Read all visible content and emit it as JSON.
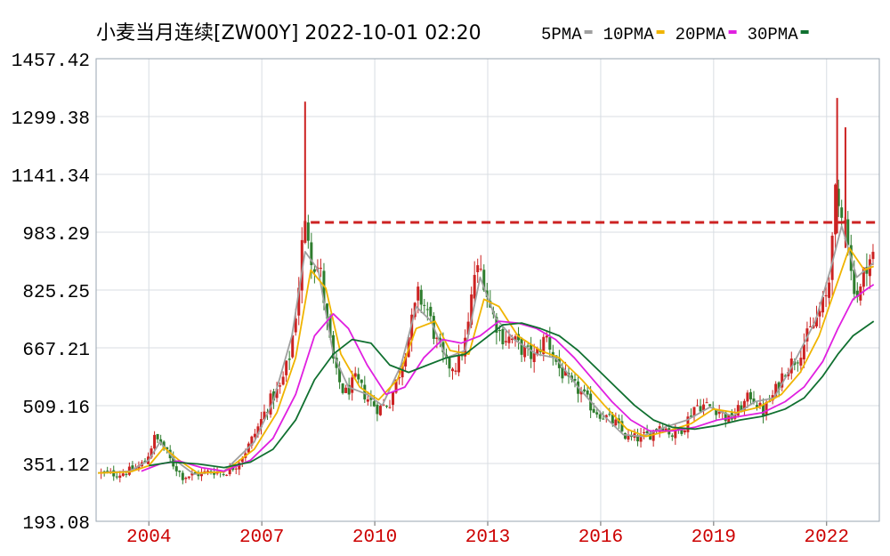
{
  "header": {
    "title": "小麦当月连续[ZW00Y] 2022-10-01 02:20"
  },
  "legend": {
    "placement": "top-right",
    "items": [
      {
        "label": "5PMA",
        "color": "#a0a0a0"
      },
      {
        "label": "10PMA",
        "color": "#f0b400"
      },
      {
        "label": "20PMA",
        "color": "#e020e0"
      },
      {
        "label": "30PMA",
        "color": "#107030"
      }
    ]
  },
  "colors": {
    "up": "#cc2222",
    "down": "#2e7d2e",
    "grid": "#d8dde3",
    "axis_text": "#000000",
    "xaxis_text": "#cc0000",
    "reference_line": "#cc2222"
  },
  "chart_data": {
    "type": "candlestick",
    "yticks": [
      "1457.42",
      "1299.38",
      "1141.34",
      "983.29",
      "825.25",
      "667.21",
      "509.16",
      "351.12",
      "193.08"
    ],
    "ylim": [
      193.08,
      1457.42
    ],
    "xlim": [
      2002.6,
      2023.4
    ],
    "xticks": [
      "2004",
      "2007",
      "2010",
      "2013",
      "2016",
      "2019",
      "2022"
    ],
    "grid": true,
    "reference_line": {
      "value": 1010,
      "style": "dashed",
      "from_x": 2008.3,
      "to_x": 2023.3
    },
    "close_path": [
      [
        2002.65,
        325
      ],
      [
        2003.2,
        322
      ],
      [
        2003.6,
        335
      ],
      [
        2003.9,
        355
      ],
      [
        2004.15,
        420
      ],
      [
        2004.35,
        405
      ],
      [
        2004.6,
        355
      ],
      [
        2004.9,
        315
      ],
      [
        2005.3,
        322
      ],
      [
        2005.7,
        330
      ],
      [
        2006.0,
        325
      ],
      [
        2006.3,
        345
      ],
      [
        2006.6,
        390
      ],
      [
        2006.9,
        450
      ],
      [
        2007.2,
        520
      ],
      [
        2007.5,
        560
      ],
      [
        2007.75,
        650
      ],
      [
        2007.95,
        800
      ],
      [
        2008.1,
        990
      ],
      [
        2008.2,
        1000
      ],
      [
        2008.35,
        900
      ],
      [
        2008.55,
        880
      ],
      [
        2008.75,
        720
      ],
      [
        2008.95,
        600
      ],
      [
        2009.2,
        540
      ],
      [
        2009.5,
        580
      ],
      [
        2009.8,
        530
      ],
      [
        2010.1,
        500
      ],
      [
        2010.4,
        520
      ],
      [
        2010.65,
        600
      ],
      [
        2010.9,
        700
      ],
      [
        2011.15,
        810
      ],
      [
        2011.4,
        770
      ],
      [
        2011.65,
        680
      ],
      [
        2011.9,
        620
      ],
      [
        2012.2,
        620
      ],
      [
        2012.45,
        700
      ],
      [
        2012.65,
        870
      ],
      [
        2012.85,
        880
      ],
      [
        2013.05,
        780
      ],
      [
        2013.35,
        700
      ],
      [
        2013.65,
        690
      ],
      [
        2013.95,
        660
      ],
      [
        2014.25,
        640
      ],
      [
        2014.55,
        700
      ],
      [
        2014.85,
        620
      ],
      [
        2015.15,
        570
      ],
      [
        2015.45,
        550
      ],
      [
        2015.8,
        500
      ],
      [
        2016.1,
        480
      ],
      [
        2016.4,
        460
      ],
      [
        2016.7,
        420
      ],
      [
        2017.0,
        420
      ],
      [
        2017.3,
        430
      ],
      [
        2017.6,
        460
      ],
      [
        2017.9,
        430
      ],
      [
        2018.2,
        450
      ],
      [
        2018.5,
        510
      ],
      [
        2018.8,
        510
      ],
      [
        2019.1,
        500
      ],
      [
        2019.4,
        470
      ],
      [
        2019.7,
        500
      ],
      [
        2020.0,
        540
      ],
      [
        2020.3,
        490
      ],
      [
        2020.6,
        540
      ],
      [
        2020.9,
        610
      ],
      [
        2021.2,
        640
      ],
      [
        2021.5,
        700
      ],
      [
        2021.8,
        760
      ],
      [
        2022.05,
        820
      ],
      [
        2022.2,
        1100
      ],
      [
        2022.35,
        1000
      ],
      [
        2022.5,
        1050
      ],
      [
        2022.65,
        870
      ],
      [
        2022.85,
        800
      ],
      [
        2023.05,
        900
      ],
      [
        2023.25,
        920
      ]
    ],
    "spikes": [
      {
        "x": 2008.15,
        "high": 1340,
        "low": 960
      },
      {
        "x": 2022.28,
        "high": 1350,
        "low": 980
      },
      {
        "x": 2022.5,
        "high": 1270,
        "low": 940
      }
    ],
    "series": [
      {
        "name": "5PMA",
        "points": [
          [
            2002.65,
            325
          ],
          [
            2003.5,
            330
          ],
          [
            2004.0,
            360
          ],
          [
            2004.3,
            410
          ],
          [
            2004.7,
            360
          ],
          [
            2005.2,
            322
          ],
          [
            2006.0,
            330
          ],
          [
            2006.8,
            410
          ],
          [
            2007.3,
            520
          ],
          [
            2007.8,
            700
          ],
          [
            2008.15,
            930
          ],
          [
            2008.5,
            880
          ],
          [
            2008.9,
            650
          ],
          [
            2009.3,
            560
          ],
          [
            2009.8,
            540
          ],
          [
            2010.2,
            510
          ],
          [
            2010.7,
            620
          ],
          [
            2011.1,
            780
          ],
          [
            2011.5,
            740
          ],
          [
            2011.9,
            640
          ],
          [
            2012.4,
            660
          ],
          [
            2012.8,
            860
          ],
          [
            2013.2,
            750
          ],
          [
            2013.7,
            690
          ],
          [
            2014.3,
            650
          ],
          [
            2014.8,
            640
          ],
          [
            2015.4,
            560
          ],
          [
            2016.0,
            490
          ],
          [
            2016.6,
            430
          ],
          [
            2017.1,
            425
          ],
          [
            2017.7,
            450
          ],
          [
            2018.3,
            470
          ],
          [
            2018.9,
            505
          ],
          [
            2019.5,
            480
          ],
          [
            2020.1,
            520
          ],
          [
            2020.6,
            530
          ],
          [
            2021.1,
            620
          ],
          [
            2021.7,
            740
          ],
          [
            2022.1,
            880
          ],
          [
            2022.4,
            1000
          ],
          [
            2022.8,
            860
          ],
          [
            2023.25,
            900
          ]
        ]
      },
      {
        "name": "10PMA",
        "points": [
          [
            2002.65,
            325
          ],
          [
            2003.5,
            328
          ],
          [
            2004.0,
            345
          ],
          [
            2004.4,
            395
          ],
          [
            2004.8,
            360
          ],
          [
            2005.3,
            325
          ],
          [
            2006.0,
            328
          ],
          [
            2006.8,
            390
          ],
          [
            2007.4,
            490
          ],
          [
            2007.9,
            640
          ],
          [
            2008.3,
            880
          ],
          [
            2008.7,
            830
          ],
          [
            2009.1,
            650
          ],
          [
            2009.6,
            560
          ],
          [
            2010.1,
            525
          ],
          [
            2010.6,
            580
          ],
          [
            2011.1,
            720
          ],
          [
            2011.6,
            740
          ],
          [
            2012.0,
            660
          ],
          [
            2012.5,
            650
          ],
          [
            2012.9,
            800
          ],
          [
            2013.3,
            780
          ],
          [
            2013.8,
            700
          ],
          [
            2014.4,
            660
          ],
          [
            2014.9,
            640
          ],
          [
            2015.5,
            580
          ],
          [
            2016.1,
            510
          ],
          [
            2016.7,
            445
          ],
          [
            2017.2,
            425
          ],
          [
            2017.8,
            440
          ],
          [
            2018.4,
            460
          ],
          [
            2019.0,
            500
          ],
          [
            2019.6,
            490
          ],
          [
            2020.2,
            505
          ],
          [
            2020.8,
            540
          ],
          [
            2021.3,
            600
          ],
          [
            2021.8,
            700
          ],
          [
            2022.2,
            820
          ],
          [
            2022.6,
            940
          ],
          [
            2023.0,
            880
          ],
          [
            2023.25,
            890
          ]
        ]
      },
      {
        "name": "20PMA",
        "points": [
          [
            2003.8,
            330
          ],
          [
            2004.3,
            350
          ],
          [
            2004.8,
            358
          ],
          [
            2005.4,
            340
          ],
          [
            2006.0,
            330
          ],
          [
            2006.7,
            360
          ],
          [
            2007.3,
            420
          ],
          [
            2007.9,
            540
          ],
          [
            2008.4,
            700
          ],
          [
            2008.9,
            760
          ],
          [
            2009.3,
            720
          ],
          [
            2009.8,
            620
          ],
          [
            2010.3,
            540
          ],
          [
            2010.8,
            560
          ],
          [
            2011.3,
            640
          ],
          [
            2011.8,
            690
          ],
          [
            2012.3,
            680
          ],
          [
            2012.8,
            700
          ],
          [
            2013.3,
            740
          ],
          [
            2013.8,
            735
          ],
          [
            2014.3,
            720
          ],
          [
            2014.8,
            690
          ],
          [
            2015.3,
            640
          ],
          [
            2015.8,
            580
          ],
          [
            2016.3,
            520
          ],
          [
            2016.8,
            470
          ],
          [
            2017.3,
            440
          ],
          [
            2017.9,
            440
          ],
          [
            2018.5,
            450
          ],
          [
            2019.1,
            470
          ],
          [
            2019.7,
            480
          ],
          [
            2020.3,
            490
          ],
          [
            2020.9,
            520
          ],
          [
            2021.4,
            560
          ],
          [
            2021.9,
            630
          ],
          [
            2022.3,
            720
          ],
          [
            2022.7,
            800
          ],
          [
            2023.1,
            830
          ],
          [
            2023.25,
            840
          ]
        ]
      },
      {
        "name": "30PMA",
        "points": [
          [
            2004.0,
            345
          ],
          [
            2004.6,
            355
          ],
          [
            2005.3,
            350
          ],
          [
            2006.0,
            340
          ],
          [
            2006.7,
            355
          ],
          [
            2007.3,
            390
          ],
          [
            2007.9,
            470
          ],
          [
            2008.4,
            580
          ],
          [
            2008.9,
            650
          ],
          [
            2009.4,
            690
          ],
          [
            2009.9,
            680
          ],
          [
            2010.4,
            620
          ],
          [
            2010.9,
            600
          ],
          [
            2011.4,
            620
          ],
          [
            2011.9,
            640
          ],
          [
            2012.4,
            650
          ],
          [
            2012.9,
            690
          ],
          [
            2013.4,
            730
          ],
          [
            2013.9,
            735
          ],
          [
            2014.4,
            720
          ],
          [
            2014.9,
            700
          ],
          [
            2015.4,
            660
          ],
          [
            2015.9,
            610
          ],
          [
            2016.4,
            560
          ],
          [
            2016.9,
            510
          ],
          [
            2017.4,
            470
          ],
          [
            2017.9,
            450
          ],
          [
            2018.5,
            445
          ],
          [
            2019.1,
            455
          ],
          [
            2019.7,
            470
          ],
          [
            2020.3,
            480
          ],
          [
            2020.9,
            500
          ],
          [
            2021.4,
            530
          ],
          [
            2021.9,
            590
          ],
          [
            2022.3,
            650
          ],
          [
            2022.7,
            700
          ],
          [
            2023.25,
            740
          ]
        ]
      }
    ]
  }
}
